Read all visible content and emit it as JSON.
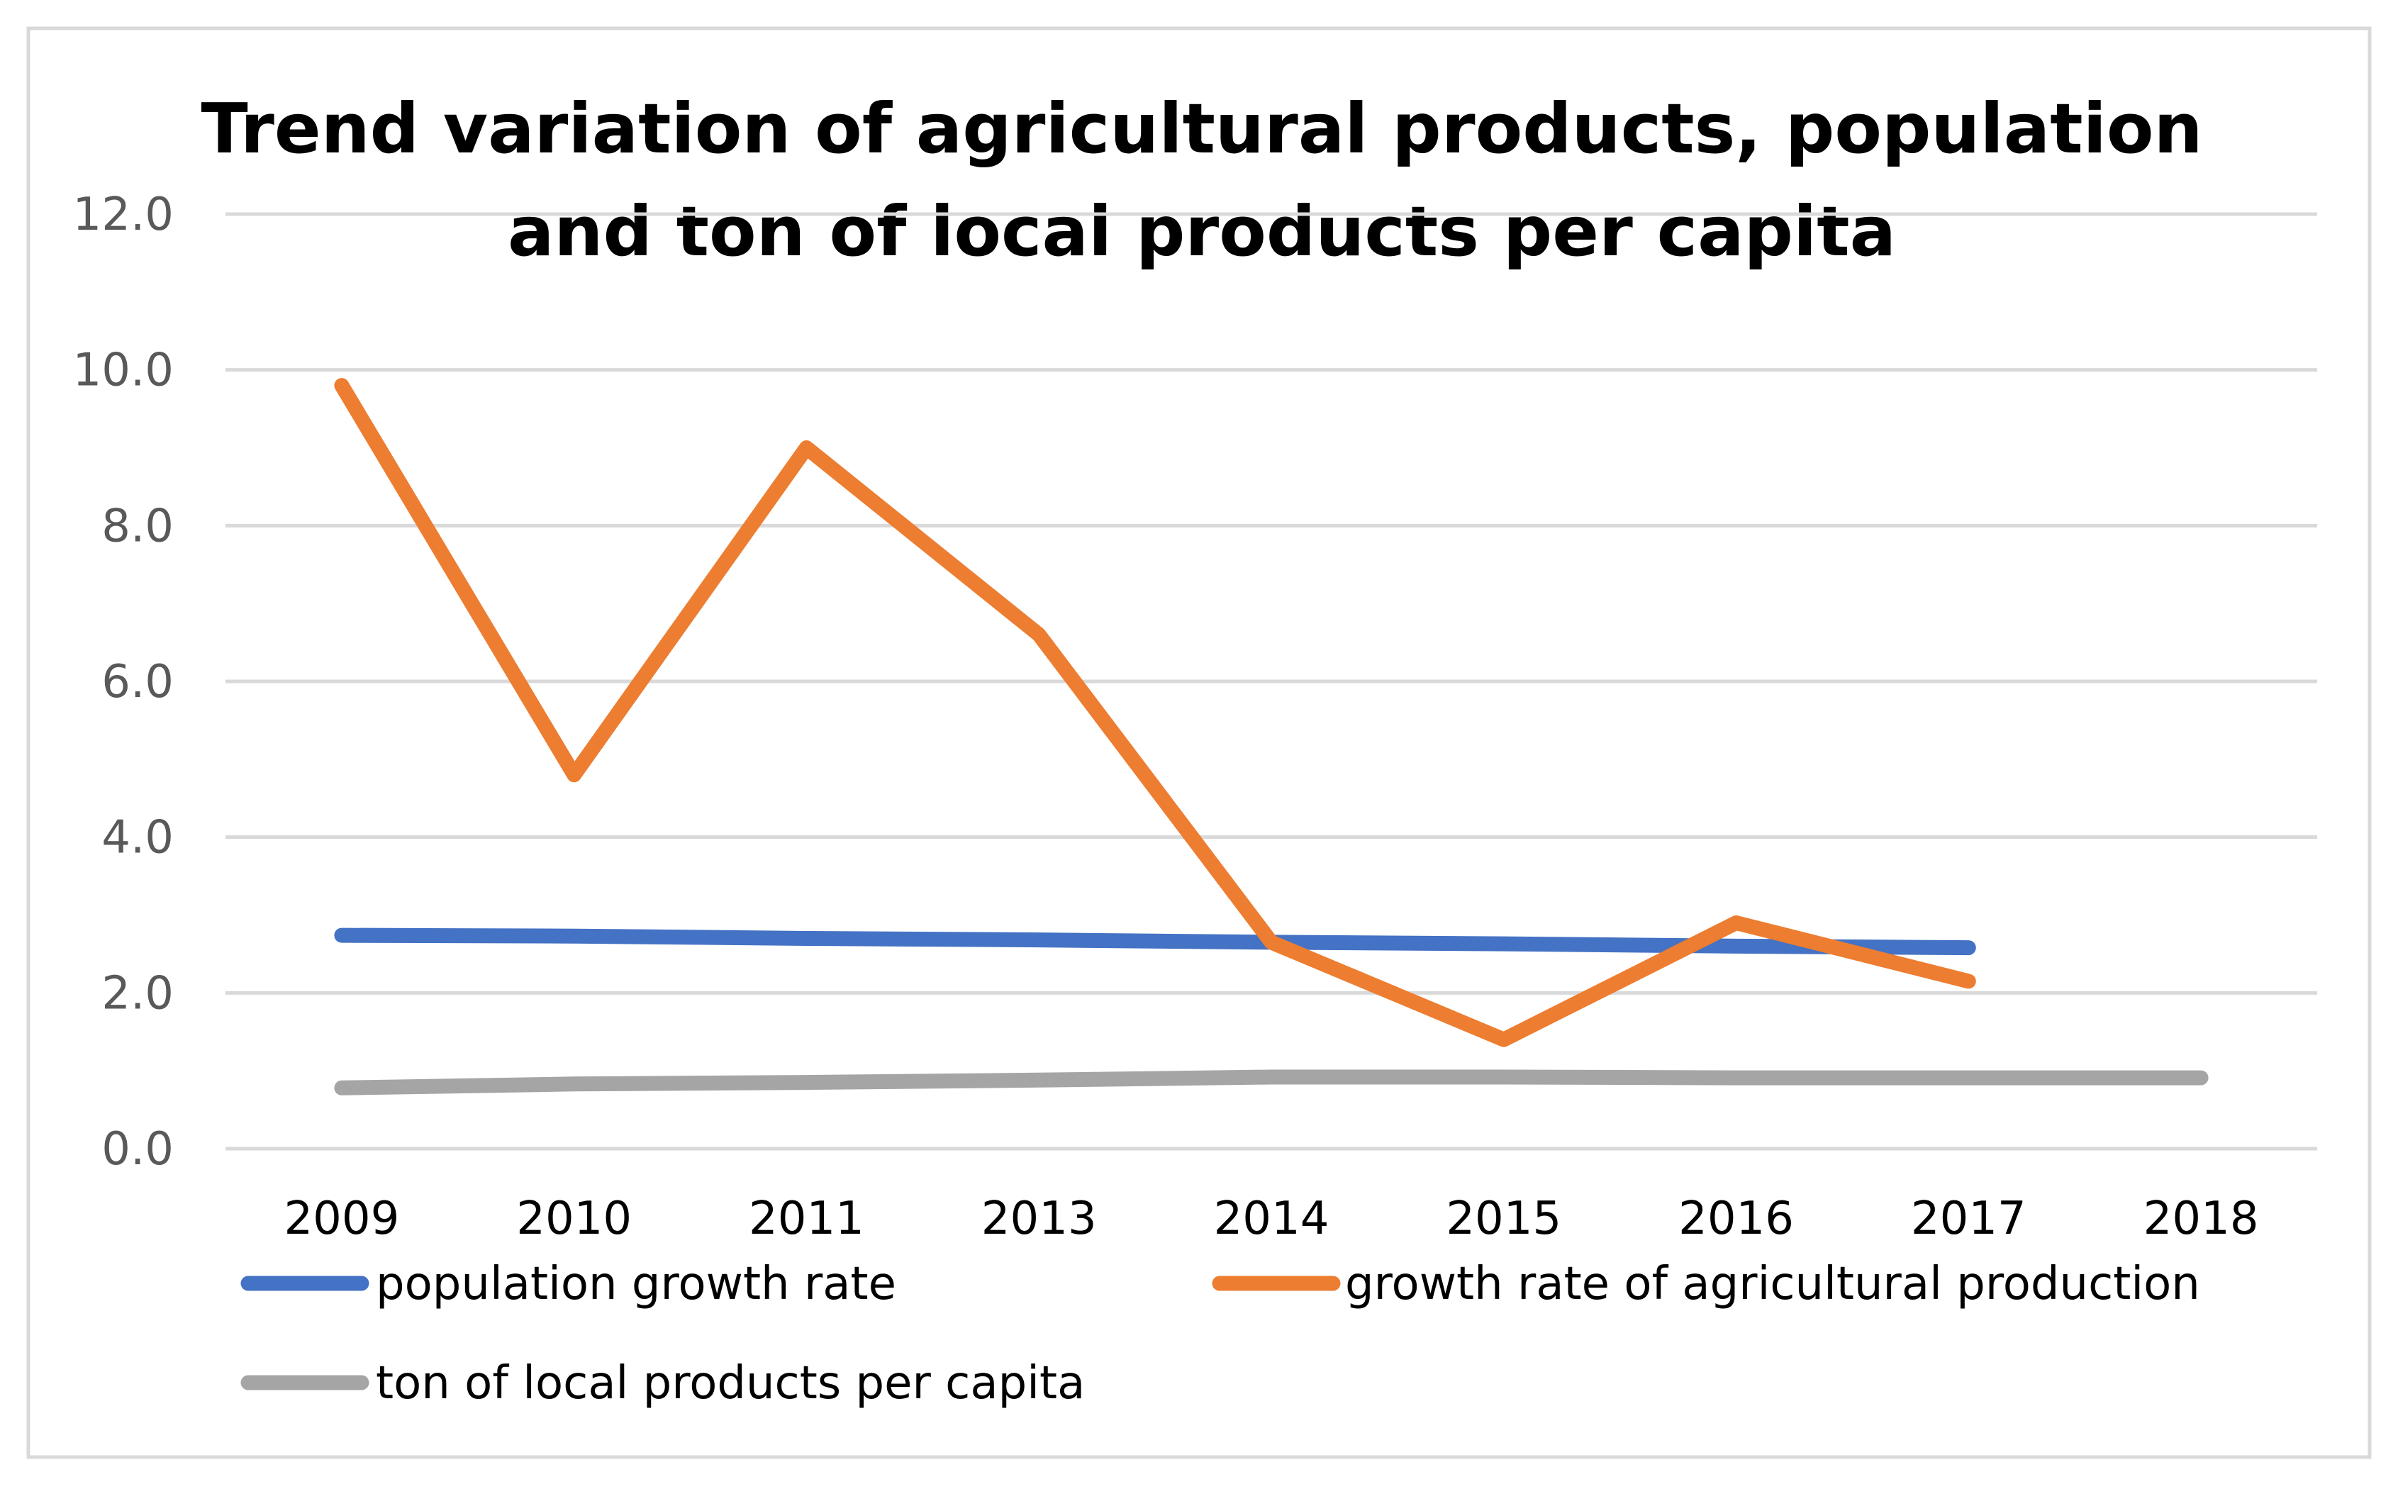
{
  "chart_data": {
    "type": "line",
    "title": [
      "Trend variation of agricultural products, population",
      "and ton of local products per capita"
    ],
    "categories": [
      "2009",
      "2010",
      "2011",
      "2013",
      "2014",
      "2015",
      "2016",
      "2017",
      "2018"
    ],
    "ylim": [
      0,
      12
    ],
    "yticks": [
      "0.0",
      "2.0",
      "4.0",
      "6.0",
      "8.0",
      "10.0",
      "12.0"
    ],
    "grid": true,
    "legend_position": "bottom",
    "xlabel": "",
    "ylabel": "",
    "series": [
      {
        "name": "population growth rate",
        "color": "#4472C4",
        "values": [
          2.74,
          2.73,
          2.7,
          2.68,
          2.65,
          2.63,
          2.6,
          2.58,
          null
        ]
      },
      {
        "name": "growth rate of agricultural production",
        "color": "#ED7D31",
        "values": [
          9.8,
          4.8,
          9.0,
          6.6,
          2.65,
          1.4,
          2.9,
          2.15,
          null
        ]
      },
      {
        "name": "ton of local products per capita",
        "color": "#A5A5A5",
        "values": [
          0.78,
          0.83,
          0.85,
          0.88,
          0.92,
          0.92,
          0.91,
          0.91,
          0.91
        ]
      }
    ]
  }
}
